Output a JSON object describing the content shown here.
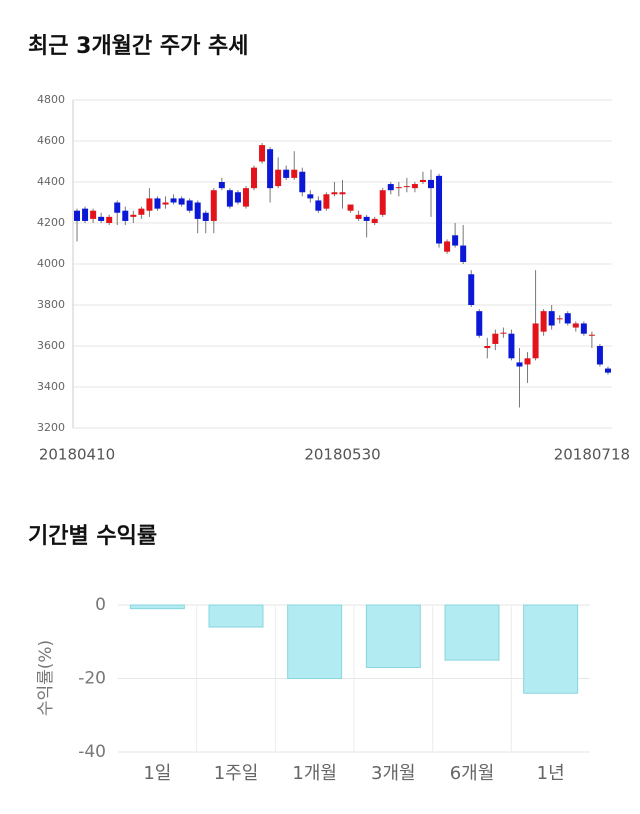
{
  "chart_data": [
    {
      "type": "candlestick",
      "title": "최근 3개월간 주가 추세",
      "categories": [
        "20180410",
        null,
        null,
        null,
        null,
        null,
        null,
        null,
        null,
        null,
        null,
        null,
        null,
        null,
        null,
        null,
        null,
        null,
        null,
        null,
        null,
        null,
        null,
        null,
        null,
        null,
        null,
        null,
        null,
        null,
        null,
        null,
        null,
        "20180530",
        null,
        null,
        null,
        null,
        null,
        null,
        null,
        null,
        null,
        null,
        null,
        null,
        null,
        null,
        null,
        null,
        null,
        null,
        null,
        null,
        null,
        null,
        null,
        null,
        null,
        null,
        null,
        null,
        null,
        null,
        "20180718",
        null,
        null
      ],
      "open": [
        4260,
        4270,
        4220,
        4230,
        4200,
        4300,
        4260,
        4230,
        4240,
        4260,
        4320,
        4290,
        4320,
        4320,
        4310,
        4300,
        4250,
        4210,
        4400,
        4360,
        4350,
        4280,
        4370,
        4500,
        4560,
        4380,
        4460,
        4420,
        4450,
        4340,
        4310,
        4270,
        4340,
        4340,
        4260,
        4220,
        4230,
        4200,
        4240,
        4390,
        4370,
        4380,
        4370,
        4400,
        4410,
        4430,
        4060,
        4140,
        4090,
        3950,
        3770,
        3590,
        3610,
        3660,
        3660,
        3520,
        3510,
        3540,
        3670,
        3770,
        3730,
        3760,
        3690,
        3710,
        3650,
        3600,
        3490
      ],
      "high": [
        4270,
        4280,
        4270,
        4250,
        4240,
        4310,
        4280,
        4260,
        4280,
        4370,
        4330,
        4330,
        4340,
        4330,
        4320,
        4310,
        4260,
        4370,
        4420,
        4370,
        4360,
        4380,
        4480,
        4590,
        4570,
        4520,
        4480,
        4550,
        4470,
        4360,
        4330,
        4350,
        4400,
        4410,
        4290,
        4260,
        4240,
        4230,
        4370,
        4400,
        4400,
        4420,
        4400,
        4450,
        4460,
        4440,
        4120,
        4200,
        4190,
        3970,
        3780,
        3640,
        3680,
        3690,
        3680,
        3590,
        3570,
        3970,
        3780,
        3800,
        3750,
        3770,
        3720,
        3720,
        3670,
        3610,
        3500
      ],
      "low": [
        4110,
        4200,
        4200,
        4200,
        4190,
        4190,
        4190,
        4200,
        4220,
        4230,
        4260,
        4270,
        4290,
        4280,
        4250,
        4150,
        4150,
        4150,
        4360,
        4270,
        4290,
        4270,
        4360,
        4490,
        4300,
        4370,
        4410,
        4410,
        4330,
        4300,
        4250,
        4260,
        4330,
        4270,
        4250,
        4210,
        4130,
        4190,
        4230,
        4340,
        4330,
        4350,
        4350,
        4390,
        4230,
        4080,
        4050,
        4080,
        4000,
        3790,
        3640,
        3540,
        3580,
        3640,
        3530,
        3300,
        3420,
        3530,
        3650,
        3680,
        3710,
        3700,
        3670,
        3650,
        3590,
        3500,
        3460
      ],
      "close": [
        4210,
        4210,
        4260,
        4210,
        4230,
        4250,
        4210,
        4240,
        4270,
        4320,
        4270,
        4300,
        4300,
        4290,
        4260,
        4220,
        4210,
        4360,
        4370,
        4280,
        4300,
        4370,
        4470,
        4580,
        4370,
        4460,
        4420,
        4460,
        4350,
        4320,
        4260,
        4340,
        4350,
        4350,
        4290,
        4240,
        4210,
        4220,
        4360,
        4360,
        4375,
        4380,
        4390,
        4410,
        4370,
        4100,
        4110,
        4090,
        4010,
        3800,
        3650,
        3600,
        3660,
        3665,
        3540,
        3500,
        3540,
        3710,
        3770,
        3700,
        3735,
        3710,
        3710,
        3660,
        3655,
        3510,
        3470
      ],
      "up_color": "#e3131b",
      "down_color": "#0b18d6",
      "ylim": [
        3200,
        4800
      ],
      "yticks": [
        3200,
        3400,
        3600,
        3800,
        4000,
        4200,
        4400,
        4600,
        4800
      ],
      "grid": true
    },
    {
      "type": "bar",
      "title": "기간별 수익률",
      "y_label": "수익률(%)",
      "categories": [
        "1일",
        "1주일",
        "1개월",
        "3개월",
        "6개월",
        "1년"
      ],
      "values": [
        -1,
        -6,
        -20,
        -17,
        -15,
        -24
      ],
      "color": "#b2ebf2",
      "edge_color": "#8ad4de",
      "ylim": [
        -40,
        0
      ],
      "yticks": [
        0,
        -20,
        -40
      ],
      "grid": true
    }
  ]
}
